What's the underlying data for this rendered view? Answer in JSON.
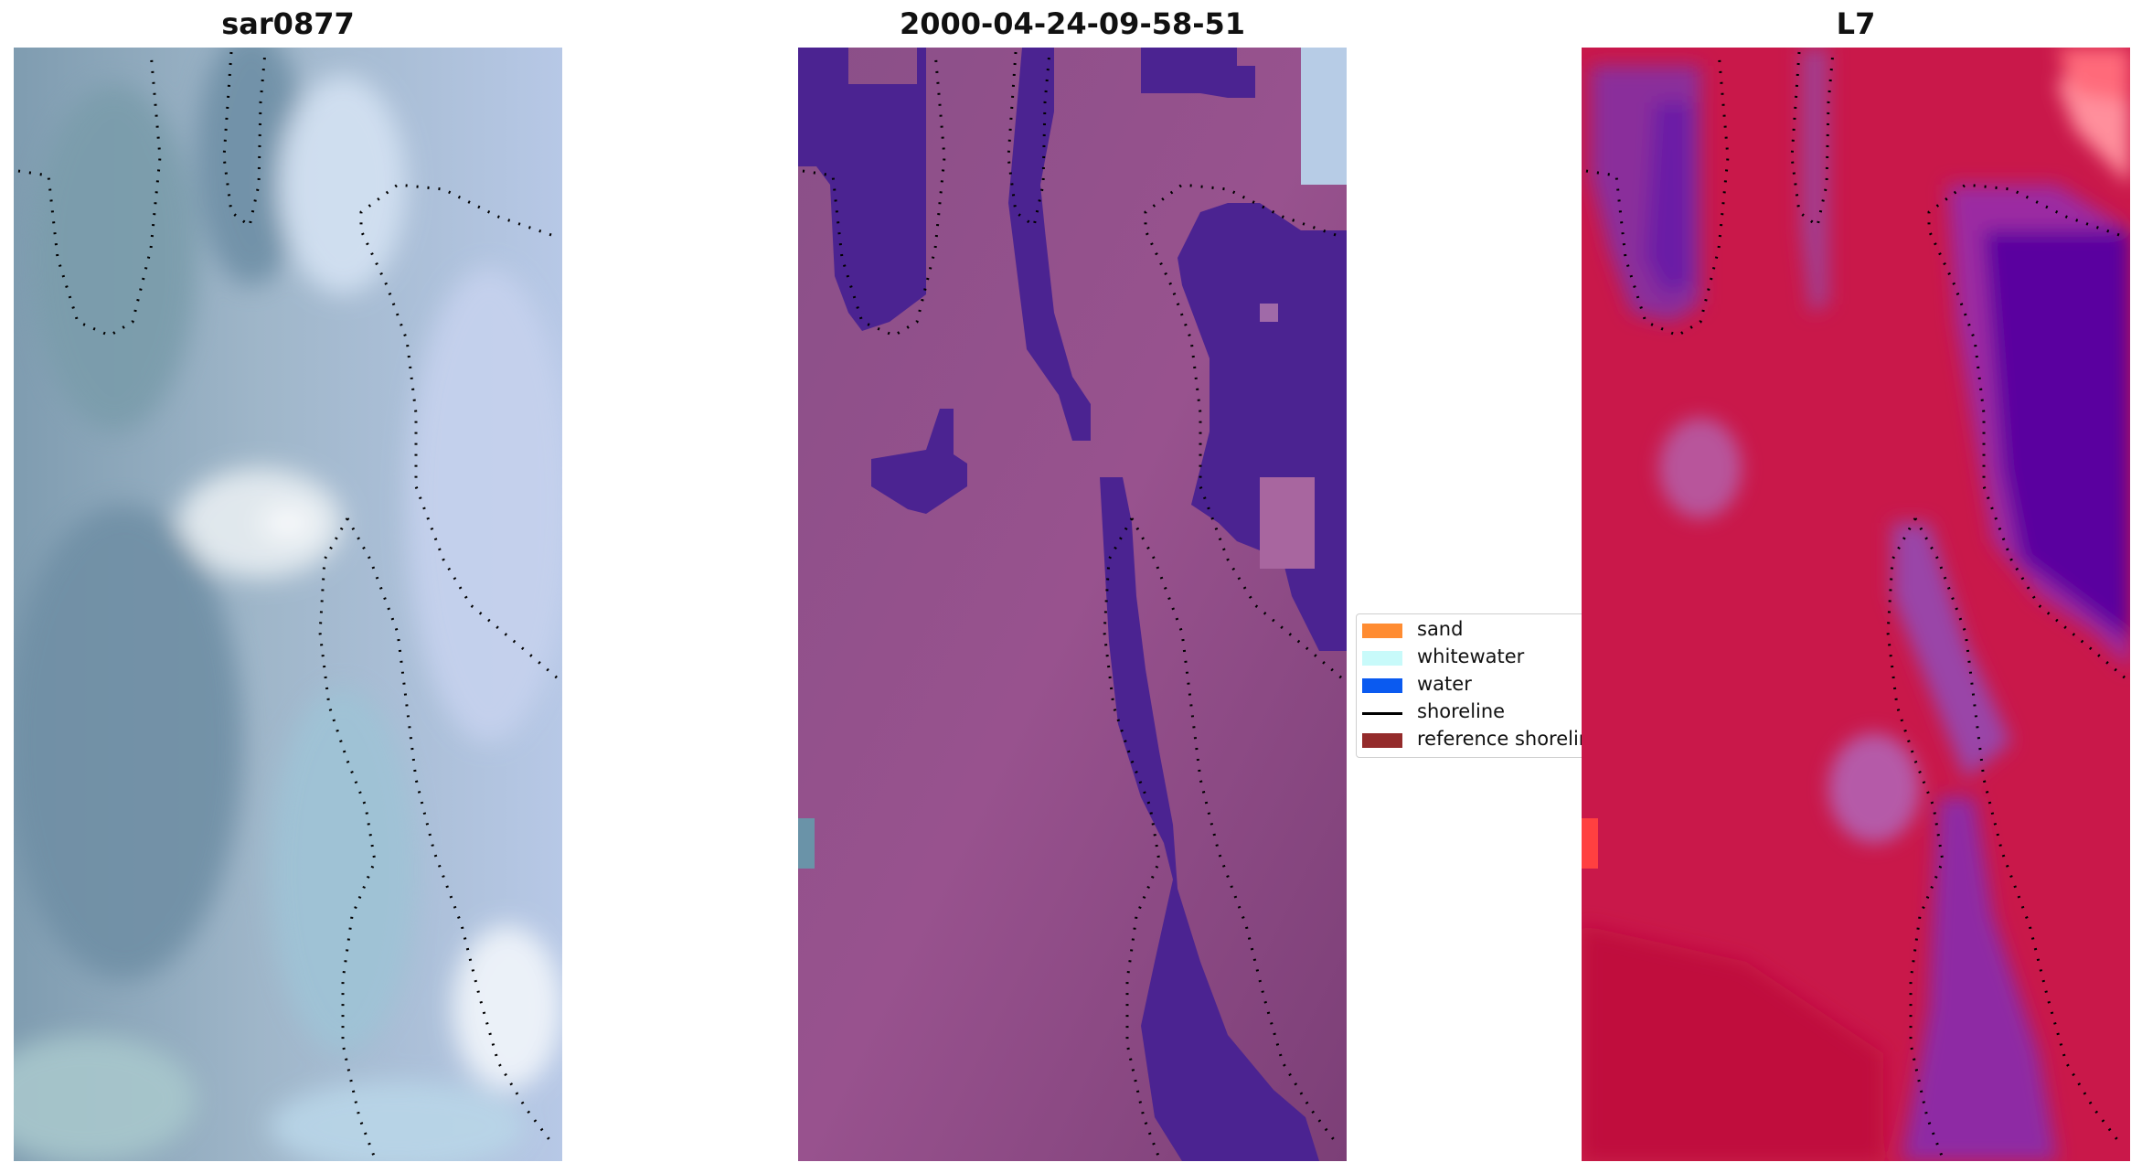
{
  "panels": [
    {
      "title": "sar0877"
    },
    {
      "title": "2000-04-24-09-58-51"
    },
    {
      "title": "L7"
    }
  ],
  "legend": {
    "items": [
      {
        "label": "sand",
        "kind": "patch",
        "color": "#ff8c32"
      },
      {
        "label": "whitewater",
        "kind": "patch",
        "color": "#c8fafa"
      },
      {
        "label": "water",
        "kind": "patch",
        "color": "#0a5af0"
      },
      {
        "label": "shoreline",
        "kind": "line",
        "color": "#000000"
      },
      {
        "label": "reference shoreline",
        "kind": "patch",
        "color": "#942b2b"
      }
    ]
  },
  "colors": {
    "rgb_panel_base": "#8fa8bc",
    "classified_base": "#8a4a82",
    "classified_water": "#4b2391",
    "index_base": "#c8184a",
    "index_low": "#6a0aa6"
  }
}
